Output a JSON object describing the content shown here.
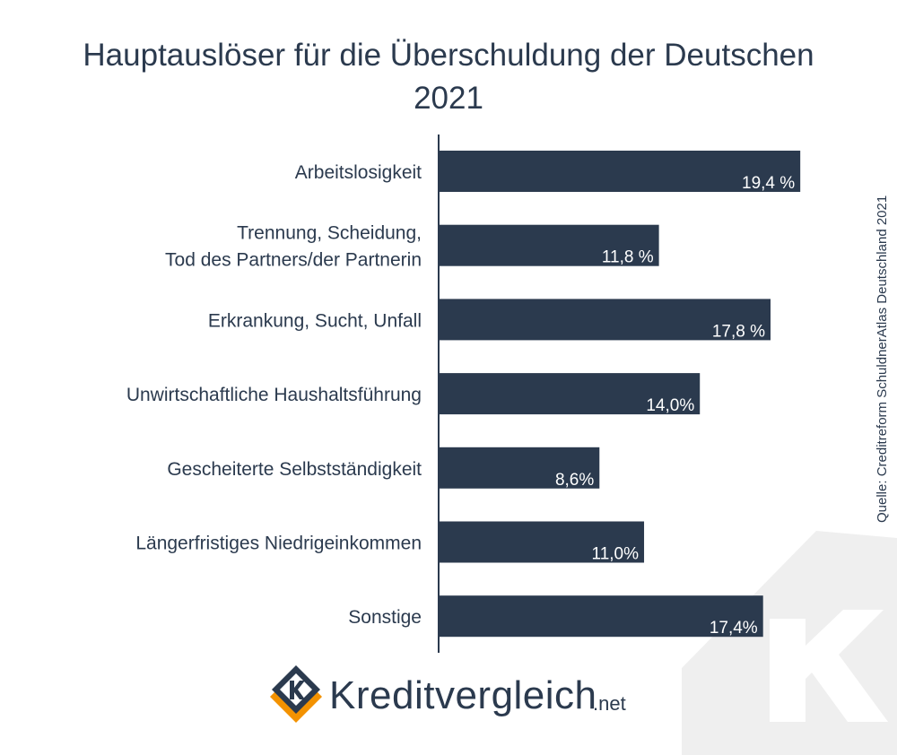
{
  "chart_data": {
    "type": "bar",
    "orientation": "horizontal",
    "title_lines": [
      "Hauptauslöser für die Überschuldung der Deutschen",
      "2021"
    ],
    "categories": [
      [
        "Arbeitslosigkeit"
      ],
      [
        "Trennung, Scheidung,",
        "Tod des Partners/der Partnerin"
      ],
      [
        "Erkrankung, Sucht, Unfall"
      ],
      [
        "Unwirtschaftliche Haushaltsführung"
      ],
      [
        "Gescheiterte Selbstständigkeit"
      ],
      [
        "Längerfristiges Niedrigeinkommen"
      ],
      [
        "Sonstige"
      ]
    ],
    "values": [
      19.4,
      11.8,
      17.8,
      14.0,
      8.6,
      11.0,
      17.4
    ],
    "value_labels": [
      "19,4 %",
      "11,8 %",
      "17,8 %",
      "14,0%",
      "8,6%",
      "11,0%",
      "17,4%"
    ],
    "unit": "%",
    "bar_color": "#2b3a4e",
    "grid": false,
    "legend": "none"
  },
  "source": "Quelle: Creditreform SchuldnerAtlas Deutschland 2021",
  "brand": {
    "name": "Kreditvergleich",
    "tld": ".net",
    "mark_letter": "K"
  },
  "colors": {
    "text": "#2b3a4e",
    "accent": "#f39200",
    "watermark": "#eeeeee"
  }
}
